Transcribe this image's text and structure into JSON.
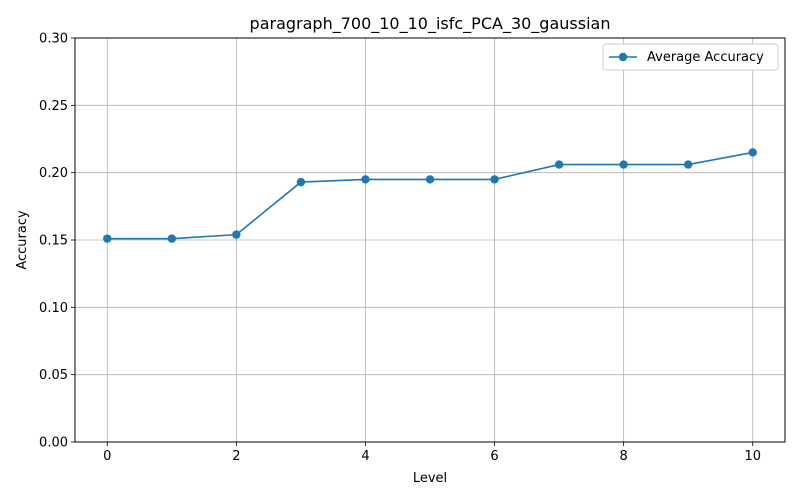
{
  "chart_data": {
    "type": "line",
    "title": "paragraph_700_10_10_isfc_PCA_30_gaussian",
    "xlabel": "Level",
    "ylabel": "Accuracy",
    "xlim": [
      -0.5,
      10.5
    ],
    "ylim": [
      0,
      0.3
    ],
    "xticks": [
      0,
      2,
      4,
      6,
      8,
      10
    ],
    "xtick_labels": [
      "0",
      "2",
      "4",
      "6",
      "8",
      "10"
    ],
    "yticks": [
      0.0,
      0.05,
      0.1,
      0.15,
      0.2,
      0.25,
      0.3
    ],
    "ytick_labels": [
      "0.00",
      "0.05",
      "0.10",
      "0.15",
      "0.20",
      "0.25",
      "0.30"
    ],
    "grid": true,
    "legend_position": "top-right",
    "series": [
      {
        "name": "Average Accuracy",
        "color": "#1f77b4",
        "marker": "circle",
        "x": [
          0,
          1,
          2,
          3,
          4,
          5,
          6,
          7,
          8,
          9,
          10
        ],
        "y": [
          0.151,
          0.151,
          0.154,
          0.193,
          0.195,
          0.195,
          0.195,
          0.206,
          0.206,
          0.206,
          0.215
        ]
      }
    ]
  }
}
